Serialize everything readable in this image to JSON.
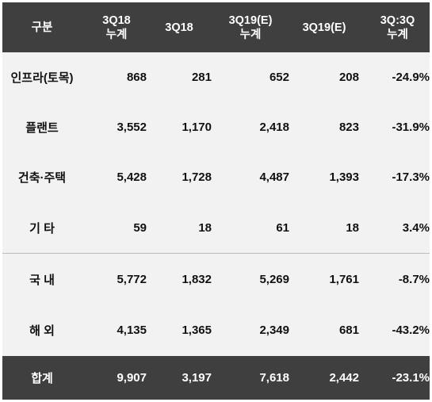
{
  "header": {
    "col0": "구분",
    "col1_line1": "3Q18",
    "col1_line2": "누계",
    "col2": "3Q18",
    "col3_line1": "3Q19(E)",
    "col3_line2": "누계",
    "col4": "3Q19(E)",
    "col5_line1": "3Q:3Q",
    "col5_line2": "누계"
  },
  "rows": [
    {
      "label": "인프라(토목)",
      "v1": "868",
      "v2": "281",
      "v3": "652",
      "v4": "208",
      "v5": "-24.9%"
    },
    {
      "label": "플랜트",
      "v1": "3,552",
      "v2": "1,170",
      "v3": "2,418",
      "v4": "823",
      "v5": "-31.9%"
    },
    {
      "label": "건축·주택",
      "v1": "5,428",
      "v2": "1,728",
      "v3": "4,487",
      "v4": "1,393",
      "v5": "-17.3%"
    },
    {
      "label": "기 타",
      "v1": "59",
      "v2": "18",
      "v3": "61",
      "v4": "18",
      "v5": "3.4%"
    },
    {
      "label": "국 내",
      "v1": "5,772",
      "v2": "1,832",
      "v3": "5,269",
      "v4": "1,761",
      "v5": "-8.7%"
    },
    {
      "label": "해 외",
      "v1": "4,135",
      "v2": "1,365",
      "v3": "2,349",
      "v4": "681",
      "v5": "-43.2%"
    }
  ],
  "total": {
    "label": "합계",
    "v1": "9,907",
    "v2": "3,197",
    "v3": "7,618",
    "v4": "2,442",
    "v5": "-23.1%"
  },
  "colors": {
    "header_bg": "#3f3f3f",
    "body_bg": "#f2f2f2",
    "separator": "#bdbdbd"
  }
}
